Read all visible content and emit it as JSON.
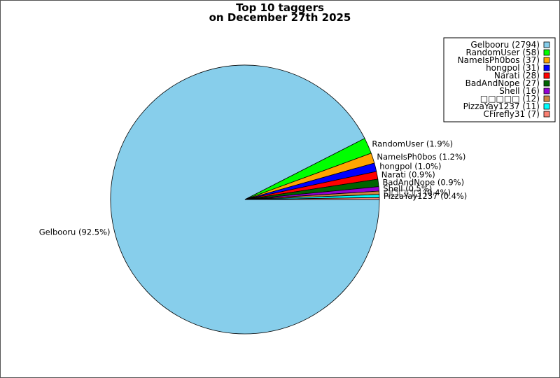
{
  "chart_data": {
    "type": "pie",
    "title_line1": "Top 10 taggers",
    "title_line2": "on December 27th 2025",
    "legend_position": "top-right",
    "slices": [
      {
        "name": "Gelbooru",
        "value": 2794,
        "legend": "Gelbooru (2794)",
        "label": "Gelbooru (92.5%)",
        "color": "#87ceeb"
      },
      {
        "name": "RandomUser",
        "value": 58,
        "legend": "RandomUser (58)",
        "label": "RandomUser (1.9%)",
        "color": "#00ff00"
      },
      {
        "name": "NameIsPh0bos",
        "value": 37,
        "legend": "NameIsPh0bos (37)",
        "label": "NameIsPh0bos (1.2%)",
        "color": "#ffa500"
      },
      {
        "name": "hongpol",
        "value": 31,
        "legend": "hongpol (31)",
        "label": "hongpol (1.0%)",
        "color": "#0000ff"
      },
      {
        "name": "Narati",
        "value": 28,
        "legend": "Narati (28)",
        "label": "Narati (0.9%)",
        "color": "#ff0000"
      },
      {
        "name": "BadAndNope",
        "value": 27,
        "legend": "BadAndNope (27)",
        "label": "BadAndNope (0.9%)",
        "color": "#006400"
      },
      {
        "name": "Shell",
        "value": 16,
        "legend": "Shell (16)",
        "label": "Shell (0.5%)",
        "color": "#9400d3"
      },
      {
        "name": "□□□□□",
        "value": 12,
        "legend": "□□□□□ (12)",
        "label": "□□□□□ (0.4%)",
        "color": "#cd853f"
      },
      {
        "name": "PizzaYay1237",
        "value": 11,
        "legend": "PizzaYay1237 (11)",
        "label": "PizzaYay1237 (0.4%)",
        "color": "#00ffff"
      },
      {
        "name": "CFirefly31",
        "value": 7,
        "legend": "CFirefly31 (7)",
        "label": "",
        "color": "#fa8072"
      }
    ]
  }
}
